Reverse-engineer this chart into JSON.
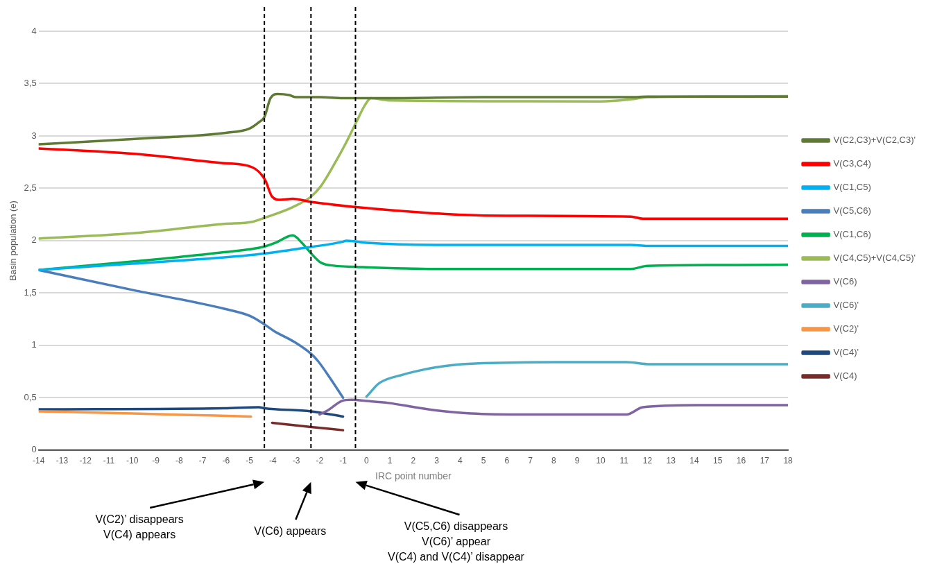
{
  "chart_data": {
    "type": "line",
    "xlabel": "IRC point number",
    "ylabel": "Basin population (e)",
    "xlim": [
      -14,
      18
    ],
    "xticks": [
      -14,
      -13,
      -12,
      -11,
      -10,
      -9,
      -8,
      -7,
      -6,
      -5,
      -4,
      -3,
      -2,
      -1,
      0,
      1,
      2,
      3,
      4,
      5,
      6,
      7,
      8,
      9,
      10,
      11,
      12,
      13,
      14,
      15,
      16,
      17,
      18
    ],
    "ylim": [
      0,
      4
    ],
    "yticks": [
      0,
      {
        "value": 0.5,
        "label": "0,5"
      },
      1,
      {
        "value": 1.5,
        "label": "1,5"
      },
      2,
      {
        "value": 2.5,
        "label": "2,5"
      },
      3,
      {
        "value": 3.5,
        "label": "3,5"
      },
      4
    ],
    "grid": "y",
    "legend": "right",
    "marker": "none",
    "line_style": "solid",
    "series": [
      {
        "name": "V(C2,C3)+V(C2,C3)'",
        "color": "#5f7a34",
        "x": [
          -14,
          -10,
          -6,
          -5,
          -4.6,
          -4.36,
          -4.1,
          -3.8,
          -3.3,
          -3,
          -2,
          -1,
          0,
          1,
          5,
          11.3,
          12,
          18
        ],
        "values": [
          2.92,
          2.97,
          3.03,
          3.07,
          3.13,
          3.18,
          3.36,
          3.4,
          3.39,
          3.37,
          3.37,
          3.36,
          3.36,
          3.36,
          3.37,
          3.37,
          3.375,
          3.375
        ]
      },
      {
        "name": "V(C3,C4)",
        "color": "#ff0000",
        "x": [
          -14,
          -10,
          -6.08,
          -4.87,
          -4.33,
          -4.03,
          -3.67,
          -3.15,
          -2.37,
          -0.44,
          2.96,
          5,
          11.3,
          11.8,
          18
        ],
        "values": [
          2.88,
          2.83,
          2.74,
          2.7,
          2.58,
          2.42,
          2.39,
          2.4,
          2.37,
          2.32,
          2.26,
          2.24,
          2.23,
          2.21,
          2.21
        ]
      },
      {
        "name": "V(C1,C5)",
        "color": "#00b0f0",
        "x": [
          -14,
          -10,
          -6.08,
          -4.42,
          -2.37,
          -1,
          -0.86,
          0,
          2.96,
          11.3,
          12,
          18
        ],
        "values": [
          1.72,
          1.78,
          1.84,
          1.875,
          1.94,
          1.99,
          2.0,
          1.98,
          1.96,
          1.96,
          1.95,
          1.95
        ]
      },
      {
        "name": "V(C5,C6)",
        "color": "#4a7ebb",
        "x": [
          -14,
          -10,
          -6.08,
          -4.96,
          -4.42,
          -3.97,
          -3.06,
          -2.37,
          -2.07,
          -1.56,
          -1
        ],
        "values": [
          1.72,
          1.53,
          1.35,
          1.28,
          1.21,
          1.14,
          1.03,
          0.92,
          0.85,
          0.69,
          0.5
        ]
      },
      {
        "name": "V(C1,C6)",
        "color": "#00b050",
        "x": [
          -14,
          -10,
          -6.08,
          -4.42,
          -3.88,
          -3.15,
          -2.76,
          -2.37,
          -1.95,
          -1.35,
          -0.44,
          2.96,
          11.3,
          12,
          18
        ],
        "values": [
          1.72,
          1.8,
          1.89,
          1.94,
          1.98,
          2.05,
          1.98,
          1.88,
          1.79,
          1.76,
          1.75,
          1.73,
          1.73,
          1.76,
          1.77
        ]
      },
      {
        "name": "V(C4,C5)+V(C4,C5)'",
        "color": "#9bbb59",
        "x": [
          -14,
          -10,
          -6.08,
          -4.87,
          -4.33,
          -3.15,
          -2.37,
          -1.95,
          -1.35,
          -0.86,
          -0.44,
          -0.05,
          0.19,
          0.94,
          10,
          11.3,
          12,
          18
        ],
        "values": [
          2.02,
          2.07,
          2.16,
          2.18,
          2.22,
          2.32,
          2.42,
          2.52,
          2.74,
          2.94,
          3.13,
          3.3,
          3.36,
          3.34,
          3.33,
          3.35,
          3.37,
          3.38
        ]
      },
      {
        "name": "V(C6)",
        "color": "#8064a2",
        "x": [
          -2,
          -1.65,
          -1.04,
          -0.65,
          -0.05,
          0.94,
          2.06,
          2.96,
          4.47,
          6.88,
          11.1,
          11.8,
          14.1,
          18
        ],
        "values": [
          0.34,
          0.38,
          0.47,
          0.48,
          0.47,
          0.45,
          0.41,
          0.38,
          0.35,
          0.34,
          0.34,
          0.41,
          0.43,
          0.43
        ]
      },
      {
        "name": "V(C6)'",
        "color": "#4bacc6",
        "x": [
          0,
          0.55,
          1.55,
          2.06,
          2.96,
          4.07,
          8.1,
          11.1,
          12.1,
          18
        ],
        "values": [
          0.51,
          0.64,
          0.72,
          0.75,
          0.79,
          0.82,
          0.84,
          0.84,
          0.82,
          0.82
        ]
      },
      {
        "name": "V(C2)'",
        "color": "#f79646",
        "x": [
          -14,
          -10,
          -4.93
        ],
        "values": [
          0.37,
          0.35,
          0.32
        ]
      },
      {
        "name": "V(C4)'",
        "color": "#1f497d",
        "x": [
          -14,
          -6.08,
          -4.6,
          -4.36,
          -2.37,
          -1
        ],
        "values": [
          0.39,
          0.4,
          0.41,
          0.4,
          0.37,
          0.32
        ]
      },
      {
        "name": "V(C4)",
        "color": "#772c2a",
        "x": [
          -4.03,
          -2.37,
          -1
        ],
        "values": [
          0.26,
          0.22,
          0.19
        ]
      }
    ],
    "ref_lines": [
      {
        "axis": "x",
        "value": -4.36,
        "color": "#000000",
        "line_style": "dashed"
      },
      {
        "axis": "x",
        "value": -2.37,
        "color": "#000000",
        "line_style": "dashed"
      },
      {
        "axis": "x",
        "value": -0.47,
        "color": "#000000",
        "line_style": "dashed"
      }
    ],
    "annotations": [
      "V(C2)’ disappears\nV(C4) appears",
      "V(C6) appears",
      "V(C5,C6) disappears\nV(C6)’ appear\nV(C4) and V(C4)’ disappear"
    ]
  }
}
